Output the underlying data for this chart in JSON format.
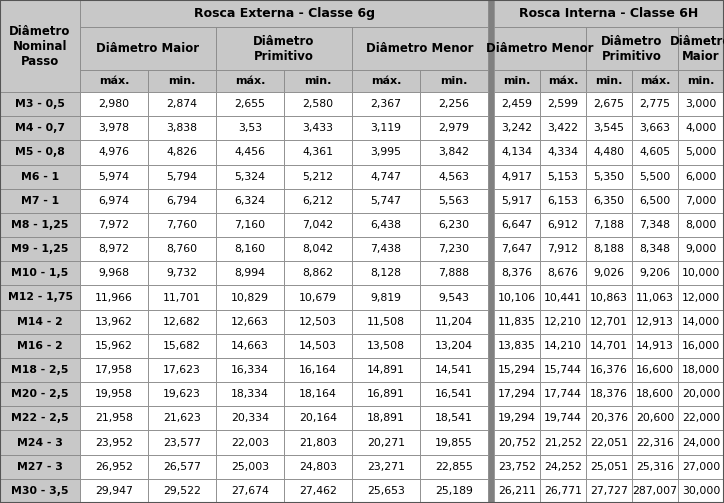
{
  "title_left": "Rosca Externa - Classe 6g",
  "title_right": "Rosca Interna - Classe 6H",
  "row_labels": [
    "M3 - 0,5",
    "M4 - 0,7",
    "M5 - 0,8",
    "M6 - 1",
    "M7 - 1",
    "M8 - 1,25",
    "M9 - 1,25",
    "M10 - 1,5",
    "M12 - 1,75",
    "M14 - 2",
    "M16 - 2",
    "M18 - 2,5",
    "M20 - 2,5",
    "M22 - 2,5",
    "M24 - 3",
    "M27 - 3",
    "M30 - 3,5"
  ],
  "ext_units": [
    "máx.",
    "min.",
    "máx.",
    "min.",
    "máx.",
    "min."
  ],
  "int_units": [
    "min.",
    "máx.",
    "min.",
    "máx.",
    "min."
  ],
  "ext_groups": [
    "Diâmetro Maior",
    "Diâmetro\nPrimitivo",
    "Diâmetro Menor"
  ],
  "int_groups": [
    "Diâmetro Menor",
    "Diâmetro\nPrimitivo",
    "Diâmetro\nMaior"
  ],
  "int_group_cols": [
    2,
    2,
    1
  ],
  "data": [
    [
      "2,980",
      "2,874",
      "2,655",
      "2,580",
      "2,367",
      "2,256",
      "2,459",
      "2,599",
      "2,675",
      "2,775",
      "3,000"
    ],
    [
      "3,978",
      "3,838",
      "3,53",
      "3,433",
      "3,119",
      "2,979",
      "3,242",
      "3,422",
      "3,545",
      "3,663",
      "4,000"
    ],
    [
      "4,976",
      "4,826",
      "4,456",
      "4,361",
      "3,995",
      "3,842",
      "4,134",
      "4,334",
      "4,480",
      "4,605",
      "5,000"
    ],
    [
      "5,974",
      "5,794",
      "5,324",
      "5,212",
      "4,747",
      "4,563",
      "4,917",
      "5,153",
      "5,350",
      "5,500",
      "6,000"
    ],
    [
      "6,974",
      "6,794",
      "6,324",
      "6,212",
      "5,747",
      "5,563",
      "5,917",
      "6,153",
      "6,350",
      "6,500",
      "7,000"
    ],
    [
      "7,972",
      "7,760",
      "7,160",
      "7,042",
      "6,438",
      "6,230",
      "6,647",
      "6,912",
      "7,188",
      "7,348",
      "8,000"
    ],
    [
      "8,972",
      "8,760",
      "8,160",
      "8,042",
      "7,438",
      "7,230",
      "7,647",
      "7,912",
      "8,188",
      "8,348",
      "9,000"
    ],
    [
      "9,968",
      "9,732",
      "8,994",
      "8,862",
      "8,128",
      "7,888",
      "8,376",
      "8,676",
      "9,026",
      "9,206",
      "10,000"
    ],
    [
      "11,966",
      "11,701",
      "10,829",
      "10,679",
      "9,819",
      "9,543",
      "10,106",
      "10,441",
      "10,863",
      "11,063",
      "12,000"
    ],
    [
      "13,962",
      "12,682",
      "12,663",
      "12,503",
      "11,508",
      "11,204",
      "11,835",
      "12,210",
      "12,701",
      "12,913",
      "14,000"
    ],
    [
      "15,962",
      "15,682",
      "14,663",
      "14,503",
      "13,508",
      "13,204",
      "13,835",
      "14,210",
      "14,701",
      "14,913",
      "16,000"
    ],
    [
      "17,958",
      "17,623",
      "16,334",
      "16,164",
      "14,891",
      "14,541",
      "15,294",
      "15,744",
      "16,376",
      "16,600",
      "18,000"
    ],
    [
      "19,958",
      "19,623",
      "18,334",
      "18,164",
      "16,891",
      "16,541",
      "17,294",
      "17,744",
      "18,376",
      "18,600",
      "20,000"
    ],
    [
      "21,958",
      "21,623",
      "20,334",
      "20,164",
      "18,891",
      "18,541",
      "19,294",
      "19,744",
      "20,376",
      "20,600",
      "22,000"
    ],
    [
      "23,952",
      "23,577",
      "22,003",
      "21,803",
      "20,271",
      "19,855",
      "20,752",
      "21,252",
      "22,051",
      "22,316",
      "24,000"
    ],
    [
      "26,952",
      "26,577",
      "25,003",
      "24,803",
      "23,271",
      "22,855",
      "23,752",
      "24,252",
      "25,051",
      "25,316",
      "27,000"
    ],
    [
      "29,947",
      "29,522",
      "27,674",
      "27,462",
      "25,653",
      "25,189",
      "26,211",
      "26,771",
      "27,727",
      "287,007",
      "30,000"
    ]
  ],
  "header_bg": "#c8c8c8",
  "divider_bg": "#808080",
  "data_bg": "#ffffff",
  "row_label_bg": "#c8c8c8",
  "border_color": "#888888",
  "text_color": "#000000",
  "title_fontsize": 9.0,
  "header_fontsize": 8.5,
  "unit_fontsize": 8.0,
  "data_fontsize": 7.8,
  "label_fontsize": 8.5
}
